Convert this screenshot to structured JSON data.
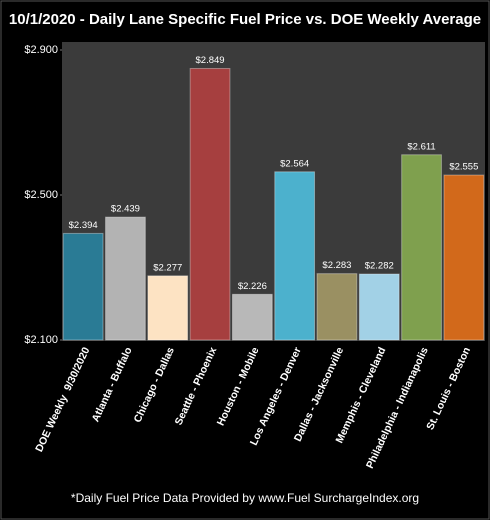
{
  "chart_data": {
    "type": "bar",
    "title": "10/1/2020 - Daily Lane Specific Fuel Price vs. DOE Weekly Average",
    "footnote": "*Daily Fuel Price Data Provided by www.Fuel SurchargeIndex.org",
    "categories": [
      "DOE Weekly  9/30/2020",
      "Atlanta - Buffalo",
      "Chicago - Dallas",
      "Seattle - Phoenix",
      "Houston - Mobile",
      "Los Angeles - Denver",
      "Dallas - Jacksonville",
      "Memphis - Cleveland",
      "Philadelphia - Indianapolis",
      "St. Louis - Boston"
    ],
    "values": [
      2.394,
      2.439,
      2.277,
      2.849,
      2.226,
      2.564,
      2.283,
      2.282,
      2.611,
      2.555
    ],
    "value_labels": [
      "$2.394",
      "$2.439",
      "$2.277",
      "$2.849",
      "$2.226",
      "$2.564",
      "$2.283",
      "$2.282",
      "$2.611",
      "$2.555"
    ],
    "colors": [
      "#2a7b95",
      "#b3b3b3",
      "#fde3c3",
      "#a63f3f",
      "#b8b8b8",
      "#4cb1cd",
      "#9a9062",
      "#a2d1e6",
      "#7fa04e",
      "#d2691b"
    ],
    "ylim": [
      2.1,
      2.9
    ],
    "yticks": [
      {
        "value": 2.1,
        "label": "$2.100"
      },
      {
        "value": 2.5,
        "label": "$2.500"
      },
      {
        "value": 2.9,
        "label": "$2.900"
      }
    ],
    "grid": false
  }
}
